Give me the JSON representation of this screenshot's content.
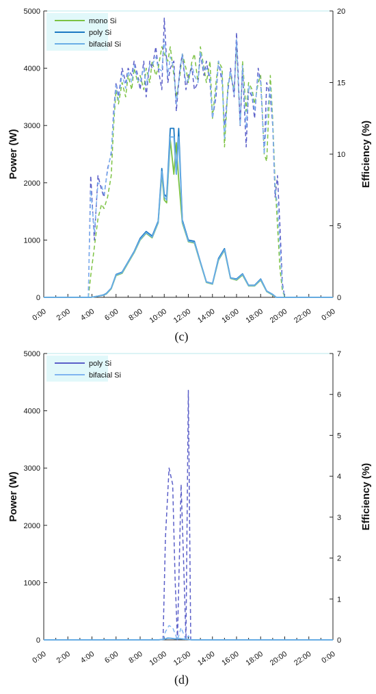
{
  "colors": {
    "mono": "#7cc242",
    "poly": "#1a78c2",
    "bifacial": "#6aaee6",
    "mono_eff": "#7cc242",
    "poly_eff": "#5a5ec8",
    "bifacial_eff": "#7fb4f0",
    "axis": "#222222",
    "frame": "#b8e9ee",
    "legend_bg": "#c9f2f5"
  },
  "chart_data": [
    {
      "panel": "c",
      "type": "line",
      "panel_label": "(c)",
      "ylabel": "Power (W)",
      "y2label": "Efficiency (%)",
      "x_tick_labels": [
        "0:00",
        "2:00",
        "4:00",
        "6:00",
        "8:00",
        "10:00",
        "12:00",
        "14:00",
        "16:00",
        "18:00",
        "20:00",
        "22:00",
        "0:00"
      ],
      "y_ticks": [
        "0",
        "1000",
        "2000",
        "3000",
        "4000",
        "5000"
      ],
      "y2_ticks": [
        "0",
        "5",
        "10",
        "15",
        "20"
      ],
      "ylim": [
        0,
        5000
      ],
      "y2lim": [
        0,
        20
      ],
      "xlim_hours": [
        0,
        24
      ],
      "legend": [
        "mono Si",
        "poly Si",
        "bifacial Si"
      ],
      "power_series": [
        {
          "name": "mono Si",
          "x": [
            0,
            3.9,
            4.5,
            5,
            5.2,
            5.6,
            6,
            6.5,
            7,
            7.5,
            8,
            8.5,
            9,
            9.5,
            9.8,
            10,
            10.2,
            10.5,
            10.8,
            11,
            11.2,
            11.5,
            12,
            12.5,
            13,
            13.5,
            14,
            14.5,
            15,
            15.5,
            16,
            16.5,
            17,
            17.5,
            18,
            18.5,
            19,
            19.3,
            19.6,
            20,
            24
          ],
          "y": [
            0,
            0,
            20,
            40,
            60,
            150,
            380,
            420,
            600,
            780,
            1000,
            1120,
            1040,
            1300,
            2150,
            1700,
            1650,
            2750,
            2150,
            2700,
            2050,
            1300,
            970,
            950,
            600,
            260,
            230,
            650,
            820,
            330,
            300,
            390,
            200,
            200,
            300,
            100,
            40,
            0,
            0,
            0,
            0
          ]
        },
        {
          "name": "poly Si",
          "x": [
            0,
            3.9,
            4.5,
            5,
            5.2,
            5.6,
            6,
            6.5,
            7,
            7.5,
            8,
            8.5,
            9,
            9.5,
            9.8,
            10,
            10.2,
            10.5,
            10.8,
            11,
            11.2,
            11.5,
            12,
            12.5,
            13,
            13.5,
            14,
            14.5,
            15,
            15.5,
            16,
            16.5,
            17,
            17.5,
            18,
            18.5,
            19,
            19.3,
            19.6,
            20,
            24
          ],
          "y": [
            0,
            0,
            20,
            45,
            70,
            160,
            400,
            440,
            620,
            800,
            1030,
            1150,
            1070,
            1330,
            2250,
            1800,
            1750,
            2950,
            2950,
            2150,
            2950,
            1350,
            1000,
            980,
            620,
            270,
            240,
            680,
            850,
            340,
            320,
            410,
            210,
            210,
            320,
            110,
            50,
            0,
            0,
            0,
            0
          ]
        },
        {
          "name": "bifacial Si",
          "x": [
            0,
            3.9,
            4.5,
            5,
            5.2,
            5.6,
            6,
            6.5,
            7,
            7.5,
            8,
            8.5,
            9,
            9.5,
            9.8,
            10,
            10.2,
            10.5,
            10.8,
            11,
            11.2,
            11.5,
            12,
            12.5,
            13,
            13.5,
            14,
            14.5,
            15,
            15.5,
            16,
            16.5,
            17,
            17.5,
            18,
            18.5,
            19,
            19.3,
            19.6,
            20,
            24
          ],
          "y": [
            0,
            0,
            20,
            40,
            65,
            155,
            390,
            430,
            610,
            790,
            1010,
            1130,
            1050,
            1310,
            2200,
            1750,
            1700,
            2800,
            2800,
            2150,
            2800,
            1320,
            980,
            960,
            610,
            265,
            235,
            660,
            830,
            335,
            310,
            400,
            205,
            205,
            310,
            105,
            45,
            0,
            0,
            0,
            0
          ]
        }
      ],
      "efficiency_series": [
        {
          "name": "mono Si",
          "x": [
            3.7,
            3.9,
            4.2,
            4.5,
            4.8,
            5.0,
            5.3,
            5.6,
            5.8,
            6.0,
            6.2,
            6.5,
            6.8,
            7,
            7.3,
            7.5,
            7.8,
            8,
            8.3,
            8.5,
            8.8,
            9,
            9.3,
            9.5,
            9.8,
            10,
            10.3,
            10.5,
            10.8,
            11,
            11.3,
            11.5,
            11.8,
            12,
            12.3,
            12.5,
            12.8,
            13,
            13.3,
            13.5,
            13.8,
            14,
            14.3,
            14.5,
            14.8,
            15,
            15.3,
            15.5,
            15.8,
            16,
            16.3,
            16.5,
            16.8,
            17,
            17.3,
            17.5,
            17.8,
            18,
            18.3,
            18.5,
            18.8,
            19,
            19.2,
            19.4,
            19.6,
            19.8,
            20
          ],
          "y": [
            0,
            1.5,
            3.5,
            5.5,
            6.5,
            6.2,
            7.0,
            8.5,
            12.0,
            14.5,
            13.5,
            15.0,
            14.0,
            15.5,
            14.5,
            16.0,
            15.0,
            15.5,
            14.5,
            16.0,
            15.0,
            16.5,
            15.5,
            16.0,
            17.5,
            17.0,
            16.5,
            17.5,
            15.5,
            14.0,
            15.5,
            17.0,
            16.0,
            15.0,
            16.5,
            17.0,
            15.0,
            17.5,
            16.0,
            15.0,
            16.5,
            12.5,
            15.0,
            16.5,
            16.0,
            10.5,
            15.0,
            15.5,
            14.5,
            17.5,
            12.0,
            16.5,
            13.0,
            15.0,
            14.5,
            13.5,
            15.0,
            15.5,
            10.0,
            9.5,
            15.5,
            12.5,
            8.0,
            5.0,
            2.0,
            0.5,
            0
          ]
        },
        {
          "name": "poly Si",
          "x": [
            3.7,
            3.9,
            4.2,
            4.5,
            4.8,
            5.0,
            5.3,
            5.6,
            5.8,
            6.0,
            6.2,
            6.5,
            6.8,
            7,
            7.3,
            7.5,
            7.8,
            8,
            8.3,
            8.5,
            8.8,
            9,
            9.3,
            9.5,
            9.8,
            10,
            10.3,
            10.5,
            10.8,
            11,
            11.3,
            11.5,
            11.8,
            12,
            12.3,
            12.5,
            12.8,
            13,
            13.3,
            13.5,
            13.8,
            14,
            14.3,
            14.5,
            14.8,
            15,
            15.3,
            15.5,
            15.8,
            16,
            16.3,
            16.5,
            16.8,
            17,
            17.3,
            17.5,
            17.8,
            18,
            18.3,
            18.5,
            18.8,
            19,
            19.2,
            19.4,
            19.6,
            19.8,
            20
          ],
          "y": [
            0,
            8.5,
            4.0,
            8.5,
            7.5,
            7.0,
            9.0,
            10.0,
            13.0,
            15.0,
            14.0,
            16.0,
            15.0,
            16.0,
            15.5,
            16.5,
            15.5,
            14.5,
            16.5,
            14.0,
            16.5,
            16.0,
            17.5,
            16.0,
            14.5,
            19.5,
            15.0,
            16.0,
            16.5,
            13.0,
            16.0,
            17.0,
            14.5,
            15.5,
            16.0,
            14.5,
            15.0,
            17.0,
            15.5,
            16.5,
            15.0,
            12.5,
            14.0,
            16.5,
            15.0,
            12.0,
            14.5,
            16.0,
            14.0,
            18.5,
            12.0,
            16.0,
            10.5,
            14.5,
            14.0,
            12.5,
            16.0,
            15.0,
            10.0,
            15.0,
            14.0,
            12.0,
            7.0,
            8.5,
            5.0,
            1.0,
            0
          ]
        },
        {
          "name": "bifacial Si",
          "x": [
            3.7,
            3.9,
            4.2,
            4.5,
            4.8,
            5.0,
            5.3,
            5.6,
            5.8,
            6.0,
            6.2,
            6.5,
            6.8,
            7,
            7.3,
            7.5,
            7.8,
            8,
            8.3,
            8.5,
            8.8,
            9,
            9.3,
            9.5,
            9.8,
            10,
            10.3,
            10.5,
            10.8,
            11,
            11.3,
            11.5,
            11.8,
            12,
            12.3,
            12.5,
            12.8,
            13,
            13.3,
            13.5,
            13.8,
            14,
            14.3,
            14.5,
            14.8,
            15,
            15.3,
            15.5,
            15.8,
            16,
            16.3,
            16.5,
            16.8,
            17,
            17.3,
            17.5,
            17.8,
            18,
            18.3,
            18.5,
            18.8,
            19,
            19.2,
            19.4,
            19.6,
            19.8,
            20
          ],
          "y": [
            0,
            7.5,
            4.5,
            8.0,
            7.8,
            7.2,
            8.8,
            10.2,
            12.5,
            14.8,
            13.8,
            15.6,
            14.6,
            15.8,
            15.0,
            16.2,
            15.2,
            15.0,
            16.0,
            14.8,
            16.2,
            16.2,
            16.8,
            16.0,
            15.8,
            18.0,
            15.5,
            16.8,
            16.0,
            13.5,
            15.8,
            17.0,
            15.0,
            15.2,
            16.2,
            15.5,
            15.0,
            17.2,
            15.8,
            16.0,
            15.5,
            12.5,
            14.5,
            16.5,
            15.5,
            11.0,
            14.8,
            15.8,
            14.2,
            18.0,
            12.0,
            16.2,
            11.8,
            14.8,
            14.2,
            13.0,
            15.5,
            15.2,
            10.0,
            12.5,
            14.8,
            12.2,
            7.5,
            6.5,
            3.5,
            0.8,
            0
          ]
        }
      ]
    },
    {
      "panel": "d",
      "type": "line",
      "panel_label": "(d)",
      "ylabel": "Power (W)",
      "y2label": "Efficiency (%)",
      "x_tick_labels": [
        "0:00",
        "2:00",
        "4:00",
        "6:00",
        "8:00",
        "10:00",
        "12:00",
        "14:00",
        "16:00",
        "18:00",
        "20:00",
        "22:00",
        "0:00"
      ],
      "y_ticks": [
        "0",
        "1000",
        "2000",
        "3000",
        "4000",
        "5000"
      ],
      "y2_ticks": [
        "0",
        "1",
        "2",
        "3",
        "4",
        "5",
        "6",
        "7"
      ],
      "ylim": [
        0,
        5000
      ],
      "y2lim": [
        0,
        7
      ],
      "xlim_hours": [
        0,
        24
      ],
      "legend": [
        "poly Si",
        "bifacial Si"
      ],
      "power_series": [
        {
          "name": "poly Si",
          "x": [
            0,
            9.5,
            10,
            10.3,
            10.6,
            11,
            11.3,
            11.6,
            12,
            12.3,
            13,
            24
          ],
          "y": [
            0,
            0,
            10,
            30,
            25,
            15,
            20,
            12,
            8,
            0,
            0,
            0
          ]
        },
        {
          "name": "bifacial Si",
          "x": [
            0,
            9.5,
            10,
            10.3,
            10.6,
            11,
            11.3,
            11.6,
            12,
            12.3,
            13,
            24
          ],
          "y": [
            0,
            0,
            12,
            35,
            28,
            18,
            22,
            14,
            10,
            0,
            0,
            0
          ]
        }
      ],
      "efficiency_series": [
        {
          "name": "poly Si",
          "x": [
            9.9,
            10.1,
            10.4,
            10.7,
            10.9,
            11.1,
            11.4,
            11.6,
            11.8,
            12.0,
            12.2
          ],
          "y": [
            0,
            2.5,
            4.2,
            3.8,
            1.5,
            0,
            3.8,
            2.0,
            0,
            6.1,
            0
          ]
        },
        {
          "name": "bifacial Si",
          "x": [
            9.9,
            10.1,
            10.4,
            10.7,
            10.9,
            11.1,
            11.4,
            11.6,
            11.8,
            12.0,
            12.2
          ],
          "y": [
            0,
            0.2,
            0.35,
            0.3,
            0.15,
            0,
            0.3,
            0.15,
            0,
            0.1,
            0
          ]
        }
      ]
    }
  ]
}
